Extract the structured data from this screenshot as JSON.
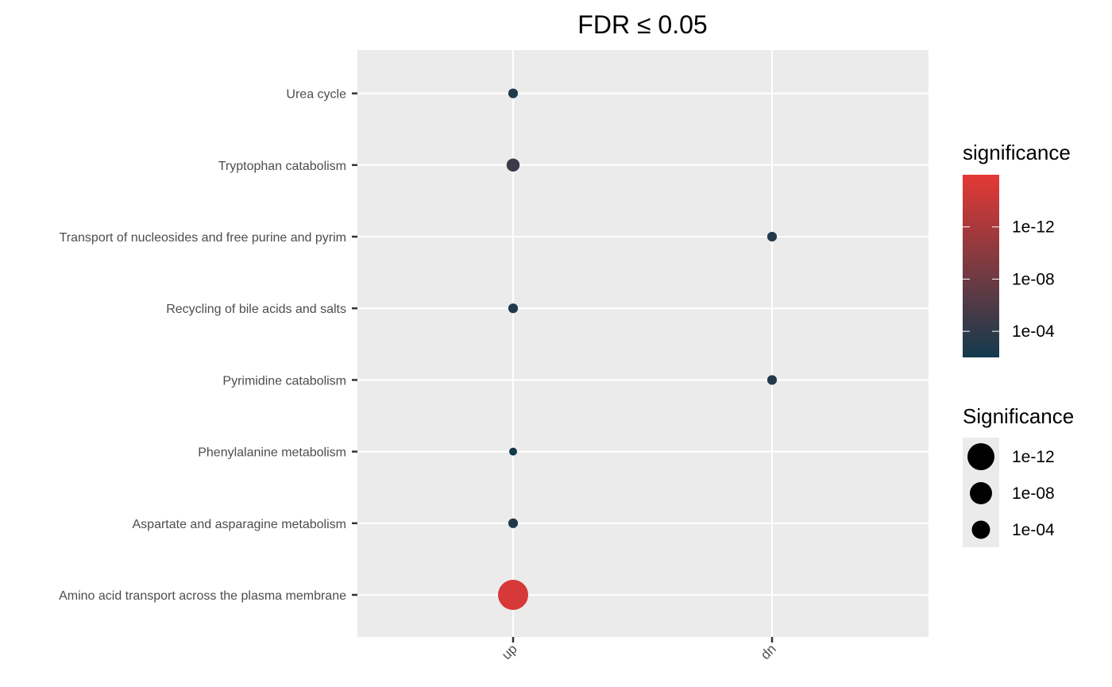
{
  "chart_data": {
    "type": "scatter",
    "title": "FDR ≤ 0.05",
    "x_categories": [
      "up",
      "dn"
    ],
    "y_categories": [
      "Amino acid transport across the plasma membrane",
      "Aspartate and asparagine metabolism",
      "Phenylalanine metabolism",
      "Pyrimidine catabolism",
      "Recycling of bile acids and salts",
      "Transport of nucleosides and free purine and pyrim",
      "Tryptophan catabolism",
      "Urea cycle"
    ],
    "points": [
      {
        "x": "up",
        "y": "Urea cycle",
        "significance": 0.001
      },
      {
        "x": "up",
        "y": "Tryptophan catabolism",
        "significance": 1e-05
      },
      {
        "x": "dn",
        "y": "Transport of nucleosides and free purine and pyrim",
        "significance": 0.001
      },
      {
        "x": "up",
        "y": "Recycling of bile acids and salts",
        "significance": 0.001
      },
      {
        "x": "dn",
        "y": "Pyrimidine catabolism",
        "significance": 0.001
      },
      {
        "x": "up",
        "y": "Phenylalanine metabolism",
        "significance": 0.01
      },
      {
        "x": "up",
        "y": "Aspartate and asparagine metabolism",
        "significance": 0.001
      },
      {
        "x": "up",
        "y": "Amino acid transport across the plasma membrane",
        "significance": 1e-15
      }
    ],
    "color_legend": {
      "title": "significance",
      "ticks": [
        "1e-12",
        "1e-08",
        "1e-04"
      ],
      "color_low": "#123a4d",
      "color_high": "#e53935"
    },
    "size_legend": {
      "title": "Significance",
      "entries": [
        {
          "label": "1e-12",
          "value": 1e-12
        },
        {
          "label": "1e-08",
          "value": 1e-08
        },
        {
          "label": "1e-04",
          "value": 0.0001
        }
      ]
    },
    "panel_background": "#ebebeb",
    "grid": true
  }
}
